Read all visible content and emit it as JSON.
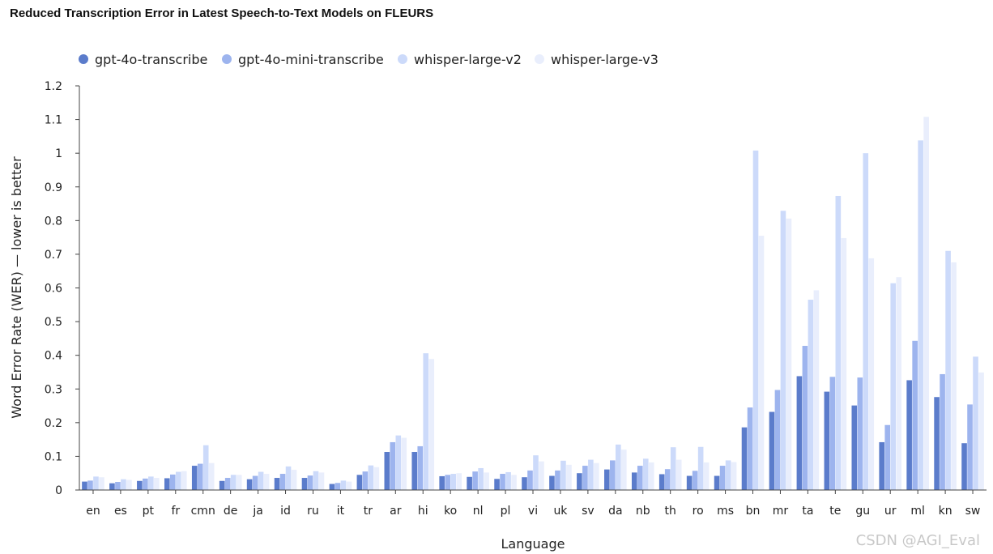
{
  "chart_data": {
    "type": "bar",
    "title": "Reduced Transcription Error in Latest Speech-to-Text Models on FLEURS",
    "xlabel": "Language",
    "ylabel": "Word Error Rate (WER) — lower is better",
    "ylim": [
      0,
      1.2
    ],
    "yticks": [
      "0",
      "0.1",
      "0.2",
      "0.3",
      "0.4",
      "0.5",
      "0.6",
      "0.7",
      "0.8",
      "0.9",
      "1",
      "1.1",
      "1.2"
    ],
    "legend_position": "top-left",
    "categories": [
      "en",
      "es",
      "pt",
      "fr",
      "cmn",
      "de",
      "ja",
      "id",
      "ru",
      "it",
      "tr",
      "ar",
      "hi",
      "ko",
      "nl",
      "pl",
      "vi",
      "uk",
      "sv",
      "da",
      "nb",
      "th",
      "ro",
      "ms",
      "bn",
      "mr",
      "ta",
      "te",
      "gu",
      "ur",
      "ml",
      "kn",
      "sw"
    ],
    "series": [
      {
        "name": "gpt-4o-transcribe",
        "color": "#5b7ccb",
        "values": [
          0.025,
          0.02,
          0.027,
          0.035,
          0.072,
          0.027,
          0.032,
          0.036,
          0.036,
          0.018,
          0.045,
          0.113,
          0.113,
          0.041,
          0.039,
          0.033,
          0.038,
          0.042,
          0.05,
          0.061,
          0.052,
          0.047,
          0.042,
          0.042,
          0.186,
          0.232,
          0.338,
          0.292,
          0.251,
          0.142,
          0.326,
          0.276,
          0.139
        ]
      },
      {
        "name": "gpt-4o-mini-transcribe",
        "color": "#9db4ee",
        "values": [
          0.028,
          0.024,
          0.034,
          0.046,
          0.078,
          0.036,
          0.042,
          0.048,
          0.043,
          0.021,
          0.055,
          0.142,
          0.13,
          0.045,
          0.055,
          0.048,
          0.058,
          0.058,
          0.072,
          0.088,
          0.072,
          0.062,
          0.057,
          0.072,
          0.245,
          0.297,
          0.428,
          0.336,
          0.334,
          0.193,
          0.443,
          0.344,
          0.254
        ]
      },
      {
        "name": "whisper-large-v2",
        "color": "#ccdafa",
        "values": [
          0.04,
          0.032,
          0.04,
          0.054,
          0.133,
          0.045,
          0.054,
          0.07,
          0.056,
          0.028,
          0.073,
          0.162,
          0.406,
          0.048,
          0.065,
          0.053,
          0.103,
          0.087,
          0.09,
          0.135,
          0.093,
          0.127,
          0.128,
          0.088,
          1.008,
          0.829,
          0.565,
          0.873,
          1.0,
          0.614,
          1.038,
          0.71,
          0.396
        ]
      },
      {
        "name": "whisper-large-v3",
        "color": "#e9eefc",
        "values": [
          0.038,
          0.03,
          0.036,
          0.056,
          0.08,
          0.045,
          0.048,
          0.06,
          0.052,
          0.025,
          0.068,
          0.155,
          0.389,
          0.05,
          0.052,
          0.045,
          0.085,
          0.075,
          0.08,
          0.12,
          0.082,
          0.09,
          0.082,
          0.083,
          0.755,
          0.806,
          0.593,
          0.748,
          0.688,
          0.632,
          1.108,
          0.676,
          0.349
        ]
      }
    ]
  },
  "watermark": "CSDN @AGI_Eval"
}
